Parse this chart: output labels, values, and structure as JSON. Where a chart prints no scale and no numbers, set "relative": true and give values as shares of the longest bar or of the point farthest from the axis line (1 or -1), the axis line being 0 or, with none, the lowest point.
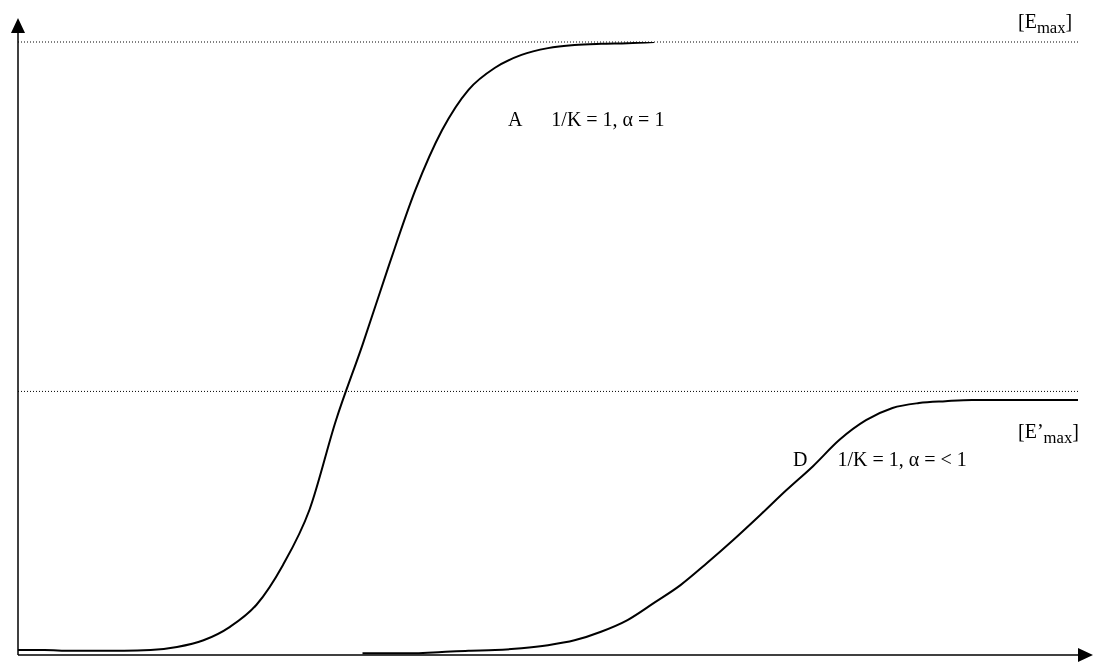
{
  "chart_data": {
    "type": "line",
    "relative": true,
    "categories": [
      null,
      null,
      null,
      null,
      null,
      null,
      null,
      null,
      null,
      null,
      null,
      null,
      null,
      null,
      null,
      null,
      null,
      null,
      null,
      null,
      null,
      null,
      null,
      null,
      null,
      null,
      null,
      null,
      null,
      null,
      null,
      null,
      null,
      null,
      null,
      null,
      null,
      null,
      null,
      null,
      null
    ],
    "series": [
      {
        "color": "#000000",
        "values": [
          0.008,
          0.008,
          0.007,
          0.007,
          0.007,
          0.008,
          0.013,
          0.024,
          0.046,
          0.082,
          0.147,
          0.237,
          0.383,
          0.506,
          0.636,
          0.759,
          0.856,
          0.922,
          0.958,
          0.979,
          0.99,
          0.995,
          0.997,
          0.998,
          1.0,
          null,
          null,
          null,
          null,
          null,
          null,
          null,
          null,
          null,
          null,
          null,
          null,
          null,
          null,
          null,
          null
        ]
      },
      {
        "color": "#000000",
        "values": [
          null,
          null,
          null,
          null,
          null,
          null,
          null,
          null,
          null,
          null,
          null,
          null,
          null,
          0.003,
          0.003,
          0.003,
          0.005,
          0.007,
          0.008,
          0.011,
          0.016,
          0.024,
          0.038,
          0.057,
          0.085,
          0.114,
          0.15,
          0.188,
          0.228,
          0.269,
          0.308,
          0.351,
          0.383,
          0.403,
          0.411,
          0.414,
          0.416,
          0.416,
          0.416,
          0.416,
          0.416
        ]
      }
    ],
    "ref_lines": [
      {
        "axis": "y",
        "value": 1.0,
        "label": "[E$_{max}$]",
        "color": "#000000",
        "line_style": "dotted"
      },
      {
        "axis": "y",
        "value": 0.43,
        "label": "[E’$_{max}$]",
        "color": "#000000",
        "line_style": "dotted"
      }
    ],
    "annotations": [
      "A      1/K = 1, α = 1",
      "D      1/K = 1, α = < 1"
    ]
  }
}
